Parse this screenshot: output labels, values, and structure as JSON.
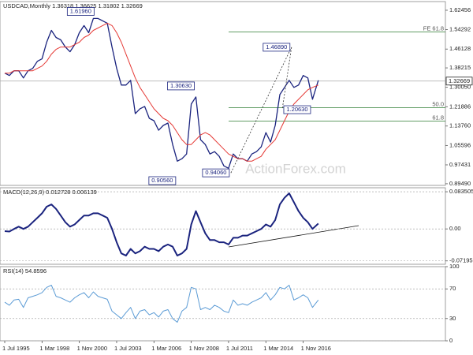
{
  "chart_data": {
    "type": "line",
    "x": [
      "1995-07",
      "1995-11",
      "1996-03",
      "1996-07",
      "1996-11",
      "1997-03",
      "1997-07",
      "1997-11",
      "1998-03",
      "1998-07",
      "1998-11",
      "1999-03",
      "1999-07",
      "1999-11",
      "2000-03",
      "2000-07",
      "2000-11",
      "2001-03",
      "2001-07",
      "2001-11",
      "2002-03",
      "2002-07",
      "2002-11",
      "2003-03",
      "2003-07",
      "2003-11",
      "2004-03",
      "2004-07",
      "2004-11",
      "2005-03",
      "2005-07",
      "2005-11",
      "2006-03",
      "2006-07",
      "2006-11",
      "2007-03",
      "2007-07",
      "2007-11",
      "2008-03",
      "2008-07",
      "2008-11",
      "2009-03",
      "2009-07",
      "2009-11",
      "2010-03",
      "2010-07",
      "2010-11",
      "2011-03",
      "2011-07",
      "2011-11",
      "2012-03",
      "2012-07",
      "2012-11",
      "2013-03",
      "2013-07",
      "2013-11",
      "2014-03",
      "2014-07",
      "2014-11",
      "2015-03",
      "2015-07",
      "2015-11",
      "2016-03",
      "2016-07",
      "2016-11",
      "2017-03",
      "2017-07",
      "2017-12"
    ],
    "xlim": [
      "1995-07",
      "2027-01"
    ],
    "xticks": [
      {
        "value": "1995-07",
        "label": "1 Jul 1995"
      },
      {
        "value": "1998-03",
        "label": "1 Mar 1998"
      },
      {
        "value": "2000-11",
        "label": "1 Nov 2000"
      },
      {
        "value": "2003-07",
        "label": "1 Jul 2003"
      },
      {
        "value": "2006-03",
        "label": "1 Mar 2006"
      },
      {
        "value": "2008-11",
        "label": "1 Nov 2008"
      },
      {
        "value": "2011-07",
        "label": "1 Jul 2011"
      },
      {
        "value": "2014-03",
        "label": "1 Mar 2014"
      },
      {
        "value": "2016-11",
        "label": "1 Nov 2016"
      }
    ],
    "watermark": "ActionForex.com",
    "panels": [
      {
        "title": "USDCAD,Monthly 1.36318 1.36625 1.31802 1.32669",
        "ylim": [
          0.888,
          1.661
        ],
        "yticks": [
          1.62456,
          1.54292,
          1.46128,
          1.38215,
          {
            "value": 1.3005,
            "label": "1.30050"
          },
          1.21886,
          {
            "value": 1.1376,
            "label": "1.13760"
          },
          1.05596,
          0.97431,
          {
            "value": 0.8949,
            "label": "0.89490"
          }
        ],
        "grid": false,
        "last": 1.32669,
        "series": [
          {
            "color": "#1a237e",
            "width": 1.3,
            "values": [
              1.36,
              1.35,
              1.37,
              1.37,
              1.34,
              1.37,
              1.38,
              1.41,
              1.42,
              1.49,
              1.54,
              1.51,
              1.5,
              1.47,
              1.45,
              1.48,
              1.53,
              1.56,
              1.53,
              1.59,
              1.59,
              1.58,
              1.57,
              1.47,
              1.38,
              1.31,
              1.31,
              1.33,
              1.19,
              1.21,
              1.22,
              1.17,
              1.16,
              1.12,
              1.14,
              1.15,
              1.06,
              0.99,
              1.0,
              1.02,
              1.23,
              1.26,
              1.08,
              1.06,
              1.02,
              1.03,
              1.01,
              0.97,
              0.96,
              1.02,
              1.0,
              1.0,
              0.99,
              1.02,
              1.03,
              1.05,
              1.11,
              1.07,
              1.14,
              1.27,
              1.3,
              1.33,
              1.3,
              1.31,
              1.35,
              1.34,
              1.25,
              1.33
            ]
          },
          {
            "color": "#e53935",
            "width": 1,
            "values": [
              1.36,
              1.36,
              1.37,
              1.37,
              1.37,
              1.37,
              1.37,
              1.38,
              1.39,
              1.41,
              1.44,
              1.46,
              1.47,
              1.47,
              1.47,
              1.48,
              1.49,
              1.51,
              1.52,
              1.54,
              1.55,
              1.56,
              1.57,
              1.56,
              1.53,
              1.49,
              1.44,
              1.39,
              1.34,
              1.3,
              1.27,
              1.24,
              1.21,
              1.19,
              1.17,
              1.16,
              1.14,
              1.11,
              1.08,
              1.06,
              1.06,
              1.08,
              1.1,
              1.11,
              1.1,
              1.08,
              1.06,
              1.04,
              1.02,
              1.01,
              1.0,
              1.0,
              0.99,
              0.99,
              1.0,
              1.01,
              1.04,
              1.06,
              1.08,
              1.12,
              1.16,
              1.2,
              1.23,
              1.25,
              1.27,
              1.29,
              1.3,
              1.31
            ]
          }
        ],
        "annotations": [
          {
            "x": "2002-01",
            "value": 1.6196,
            "label": "1.61960"
          },
          {
            "x": "2016-01",
            "value": 1.4689,
            "label": "1.46890"
          },
          {
            "x": "2009-03",
            "value": 1.3063,
            "label": "1.30630"
          },
          {
            "x": "2015-05",
            "value": 1.2063,
            "label": "1.20630"
          },
          {
            "x": "2007-11",
            "value": 0.9056,
            "label": "0.90560"
          },
          {
            "x": "2011-09",
            "value": 0.9406,
            "label": "0.94060"
          }
        ],
        "levels": [
          {
            "value": 1.5329,
            "label": "FE 61.8"
          },
          {
            "value": 1.2148,
            "label": "50.0"
          },
          {
            "value": 1.158,
            "label": "61.8"
          }
        ]
      },
      {
        "title": "MACD(12,26,9) 0.012728 0.006139",
        "ylim": [
          -0.0795,
          0.0925
        ],
        "yticks": [
          0.083505,
          {
            "value": 0,
            "label": "0.00"
          },
          -0.07195
        ],
        "grid": true,
        "series": [
          {
            "color": "#1a237e",
            "width": 2,
            "values": [
              -0.005,
              -0.006,
              0.0,
              0.005,
              0.0,
              0.005,
              0.015,
              0.025,
              0.035,
              0.05,
              0.055,
              0.045,
              0.03,
              0.015,
              0.005,
              0.01,
              0.02,
              0.03,
              0.03,
              0.035,
              0.035,
              0.03,
              0.025,
              0.0,
              -0.03,
              -0.055,
              -0.06,
              -0.045,
              -0.055,
              -0.05,
              -0.04,
              -0.045,
              -0.045,
              -0.05,
              -0.04,
              -0.035,
              -0.04,
              -0.06,
              -0.055,
              -0.045,
              0.01,
              0.04,
              0.015,
              -0.01,
              -0.025,
              -0.025,
              -0.03,
              -0.03,
              -0.035,
              -0.02,
              -0.02,
              -0.015,
              -0.015,
              -0.01,
              -0.005,
              0.0,
              0.01,
              0.005,
              0.02,
              0.055,
              0.07,
              0.08,
              0.06,
              0.04,
              0.025,
              0.015,
              0.0,
              0.012
            ]
          }
        ]
      },
      {
        "title": "RSI(14) 54.8596",
        "ylim": [
          0,
          100
        ],
        "yticks": [
          100,
          70,
          30,
          0
        ],
        "grid": true,
        "series": [
          {
            "color": "#5b9bd5",
            "width": 1,
            "values": [
              52,
              48,
              55,
              56,
              45,
              58,
              60,
              62,
              65,
              72,
              75,
              60,
              58,
              55,
              52,
              58,
              62,
              65,
              58,
              66,
              60,
              58,
              56,
              40,
              35,
              30,
              38,
              45,
              30,
              40,
              42,
              35,
              38,
              32,
              40,
              42,
              30,
              25,
              40,
              45,
              72,
              70,
              42,
              45,
              42,
              48,
              45,
              40,
              38,
              55,
              48,
              50,
              48,
              52,
              55,
              58,
              65,
              55,
              62,
              72,
              70,
              75,
              55,
              58,
              62,
              58,
              45,
              55
            ]
          }
        ]
      }
    ]
  }
}
